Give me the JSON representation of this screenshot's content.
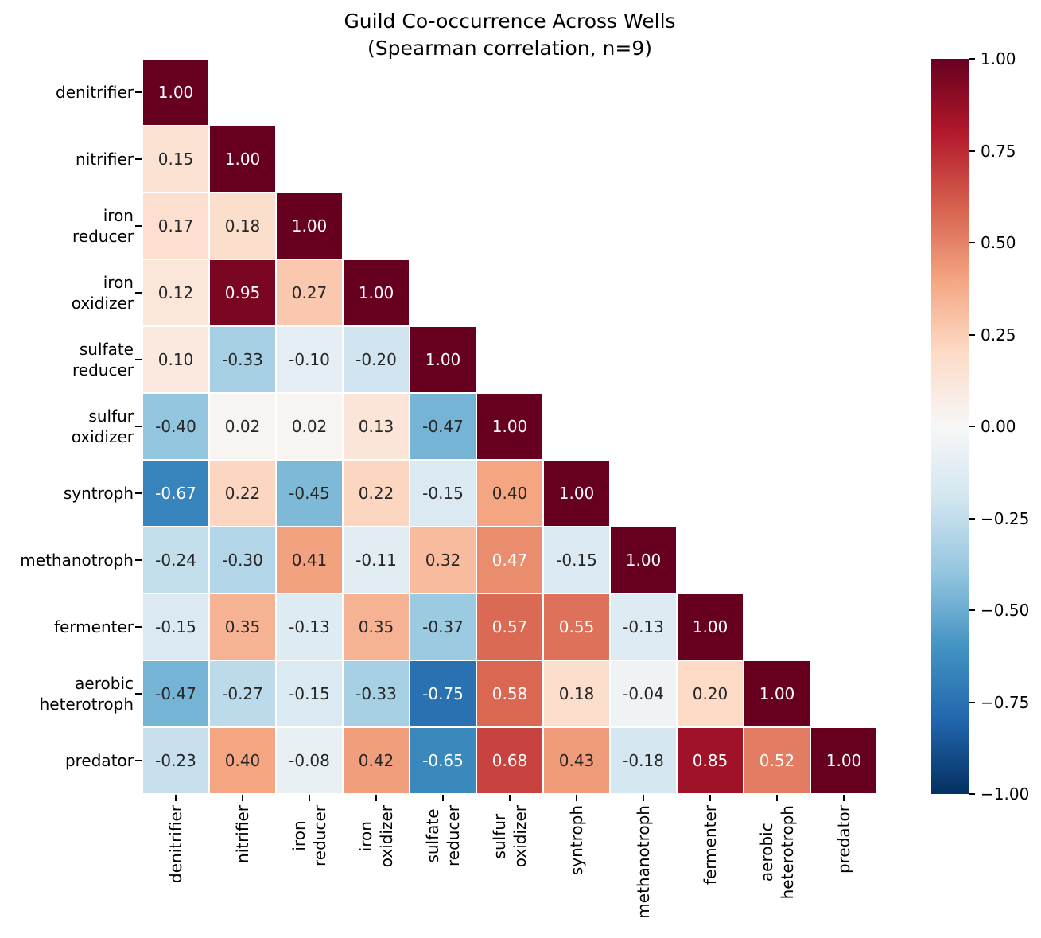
{
  "figure": {
    "title_line1": "Guild Co-occurrence Across Wells",
    "title_line2": "(Spearman correlation, n=9)"
  },
  "chart_data": {
    "type": "heatmap",
    "subtype": "correlation-matrix-lower-triangle",
    "title": "Guild Co-occurrence Across Wells",
    "subtitle": "(Spearman correlation, n=9)",
    "correlation_method": "Spearman",
    "sample_size_n": 9,
    "categories": [
      "denitrifier",
      "nitrifier",
      "iron reducer",
      "iron oxidizer",
      "sulfate reducer",
      "sulfur oxidizer",
      "syntroph",
      "methanotroph",
      "fermenter",
      "aerobic heterotroph",
      "predator"
    ],
    "axis_label_lines": [
      [
        "denitrifier"
      ],
      [
        "nitrifier"
      ],
      [
        "iron",
        "reducer"
      ],
      [
        "iron",
        "oxidizer"
      ],
      [
        "sulfate",
        "reducer"
      ],
      [
        "sulfur",
        "oxidizer"
      ],
      [
        "syntroph"
      ],
      [
        "methanotroph"
      ],
      [
        "fermenter"
      ],
      [
        "aerobic",
        "heterotroph"
      ],
      [
        "predator"
      ]
    ],
    "matrix": [
      [
        1.0
      ],
      [
        0.15,
        1.0
      ],
      [
        0.17,
        0.18,
        1.0
      ],
      [
        0.12,
        0.95,
        0.27,
        1.0
      ],
      [
        0.1,
        -0.33,
        -0.1,
        -0.2,
        1.0
      ],
      [
        -0.4,
        0.02,
        0.02,
        0.13,
        -0.47,
        1.0
      ],
      [
        -0.67,
        0.22,
        -0.45,
        0.22,
        -0.15,
        0.4,
        1.0
      ],
      [
        -0.24,
        -0.3,
        0.41,
        -0.11,
        0.32,
        0.47,
        -0.15,
        1.0
      ],
      [
        -0.15,
        0.35,
        -0.13,
        0.35,
        -0.37,
        0.57,
        0.55,
        -0.13,
        1.0
      ],
      [
        -0.47,
        -0.27,
        -0.15,
        -0.33,
        -0.75,
        0.58,
        0.18,
        -0.04,
        0.2,
        1.0
      ],
      [
        -0.23,
        0.4,
        -0.08,
        0.42,
        -0.65,
        0.68,
        0.43,
        -0.18,
        0.85,
        0.52,
        1.0
      ]
    ],
    "value_decimals": 2,
    "colorbar": {
      "vmin": -1,
      "vmax": 1,
      "tick_values": [
        1.0,
        0.75,
        0.5,
        0.25,
        0.0,
        -0.25,
        -0.5,
        -0.75,
        -1.0
      ],
      "tick_labels": [
        "1.00",
        "0.75",
        "0.50",
        "0.25",
        "0.00",
        "−0.25",
        "−0.50",
        "−0.75",
        "−1.00"
      ],
      "position": "right"
    },
    "colormap": {
      "name": "RdBu_r",
      "rdbu_anchors": [
        "#67001f",
        "#b2182b",
        "#d6604d",
        "#f4a582",
        "#fddbc7",
        "#f7f7f7",
        "#d1e5f0",
        "#92c5de",
        "#4393c3",
        "#2166ac",
        "#053061"
      ]
    },
    "colors": {
      "annotation_dark": "#262626",
      "annotation_light": "#ffffff",
      "axis_text": "#000000",
      "grid_line": "#ffffff",
      "background": "#ffffff"
    },
    "grid_on": false,
    "legend_position": "none"
  }
}
